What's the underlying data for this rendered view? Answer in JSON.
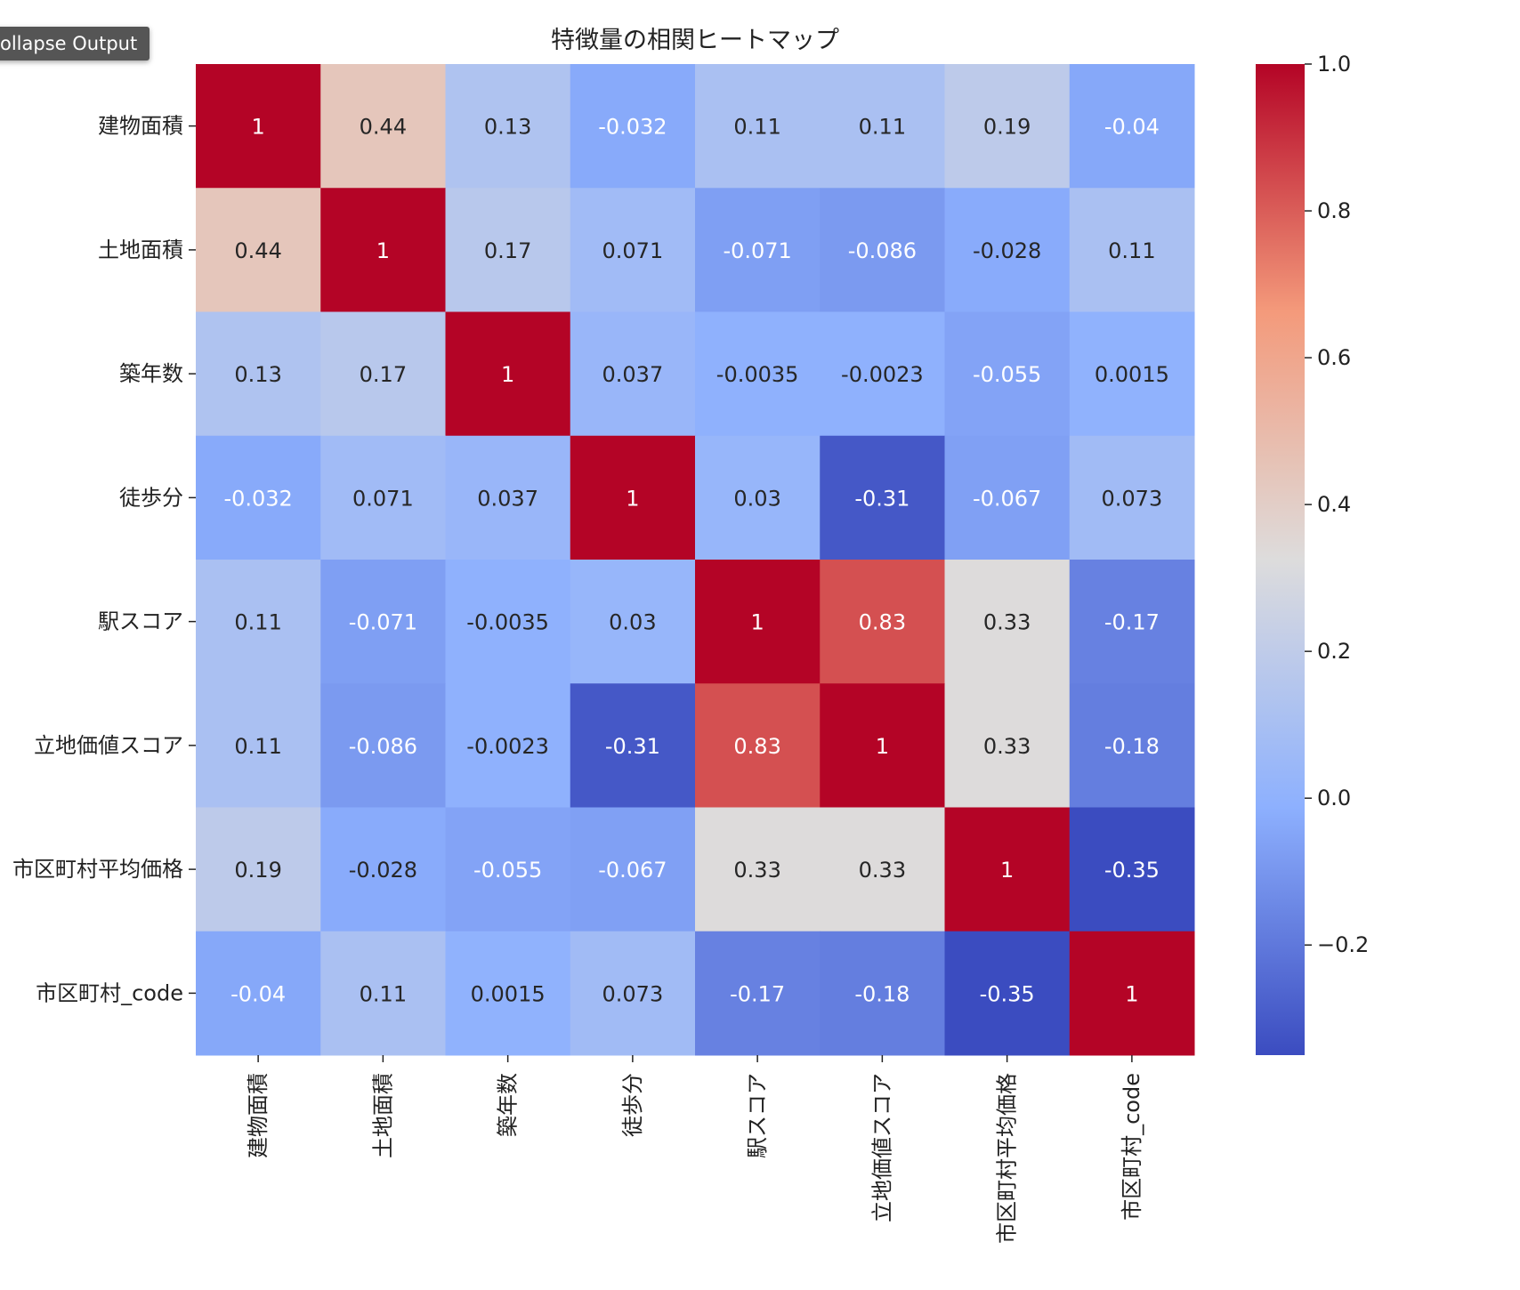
{
  "ui": {
    "collapse_label": "ollapse Output"
  },
  "chart_data": {
    "type": "heatmap",
    "title": "特徴量の相関ヒートマップ",
    "colormap": "coolwarm",
    "vmin": -0.35,
    "vmax": 1.0,
    "labels": [
      "建物面積",
      "土地面積",
      "築年数",
      "徒歩分",
      "駅スコア",
      "立地価値スコア",
      "市区町村平均価格",
      "市区町村_code"
    ],
    "values": [
      [
        "1",
        "0.44",
        "0.13",
        "-0.032",
        "0.11",
        "0.11",
        "0.19",
        "-0.04"
      ],
      [
        "0.44",
        "1",
        "0.17",
        "0.071",
        "-0.071",
        "-0.086",
        "-0.028",
        "0.11"
      ],
      [
        "0.13",
        "0.17",
        "1",
        "0.037",
        "-0.0035",
        "-0.0023",
        "-0.055",
        "0.0015"
      ],
      [
        "-0.032",
        "0.071",
        "0.037",
        "1",
        "0.03",
        "-0.31",
        "-0.067",
        "0.073"
      ],
      [
        "0.11",
        "-0.071",
        "-0.0035",
        "0.03",
        "1",
        "0.83",
        "0.33",
        "-0.17"
      ],
      [
        "0.11",
        "-0.086",
        "-0.0023",
        "-0.31",
        "0.83",
        "1",
        "0.33",
        "-0.18"
      ],
      [
        "0.19",
        "-0.028",
        "-0.055",
        "-0.067",
        "0.33",
        "0.33",
        "1",
        "-0.35"
      ],
      [
        "-0.04",
        "0.11",
        "0.0015",
        "0.073",
        "-0.17",
        "-0.18",
        "-0.35",
        "1"
      ]
    ],
    "colorbar_ticks": [
      "1.0",
      "0.8",
      "0.6",
      "0.4",
      "0.2",
      "0.0",
      "−0.2"
    ],
    "colorbar_tick_values": [
      1.0,
      0.8,
      0.6,
      0.4,
      0.2,
      0.0,
      -0.2
    ]
  }
}
